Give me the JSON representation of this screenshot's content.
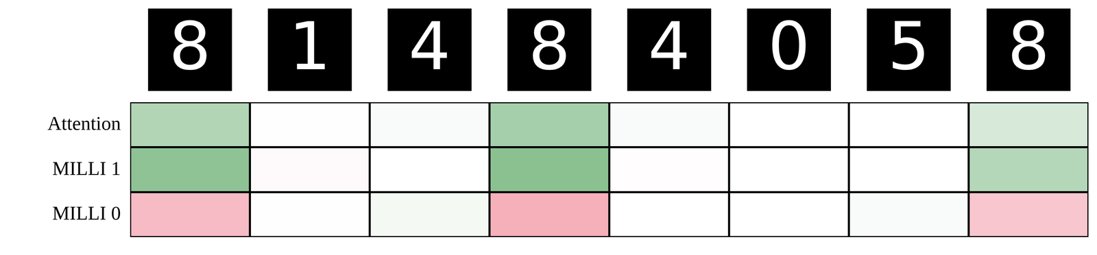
{
  "chart_data": {
    "type": "heatmap",
    "columns": [
      "8",
      "1",
      "4",
      "8",
      "4",
      "0",
      "5",
      "8"
    ],
    "rows": [
      "Attention",
      "MILLI 1",
      "MILLI 0"
    ],
    "cells": [
      [
        0.35,
        0.01,
        0.03,
        0.4,
        0.03,
        0.0,
        0.0,
        0.18
      ],
      [
        0.5,
        -0.02,
        0.0,
        0.52,
        -0.01,
        0.0,
        0.0,
        0.33
      ],
      [
        -0.3,
        0.01,
        0.05,
        -0.35,
        0.0,
        0.0,
        0.03,
        -0.25
      ]
    ],
    "zlim": [
      -1,
      1
    ]
  }
}
